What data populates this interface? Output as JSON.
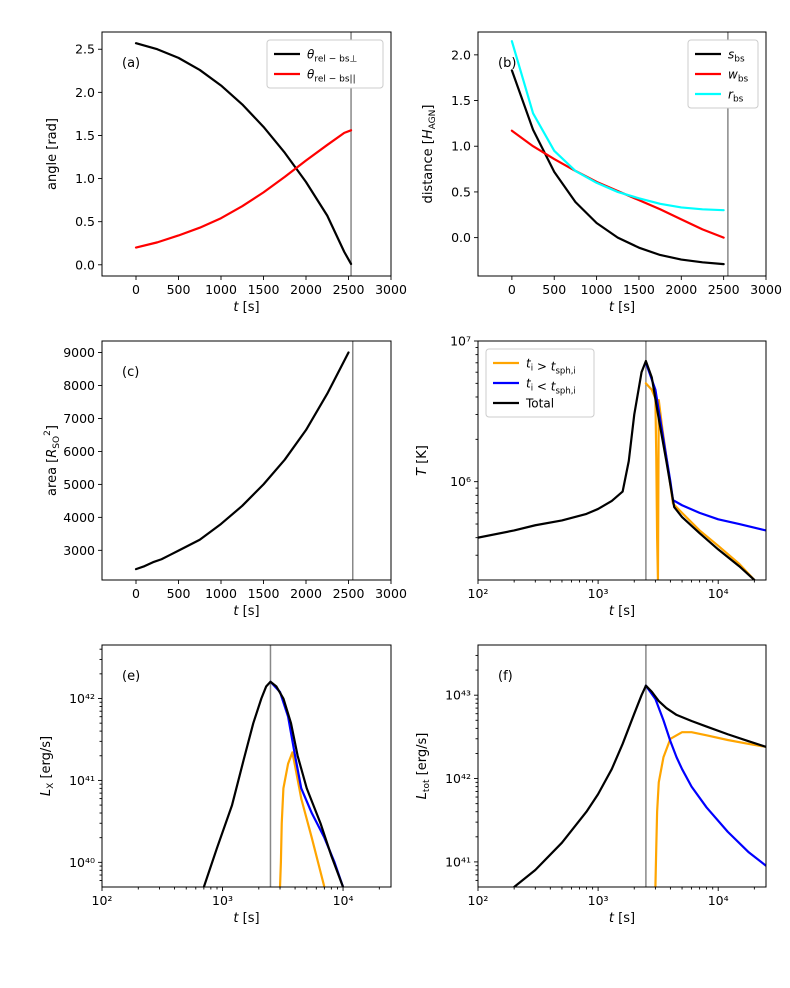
{
  "chart_data": [
    {
      "id": "a",
      "type": "line",
      "tag": "(a)",
      "xscale": "linear",
      "yscale": "linear",
      "xlim": [
        -400,
        3000
      ],
      "ylim": [
        -0.13,
        2.7
      ],
      "xticks": [
        0,
        500,
        1000,
        1500,
        2000,
        2500,
        3000
      ],
      "xtick_labels": [
        "0",
        "500",
        "1000",
        "1500",
        "2000",
        "2500",
        "3000"
      ],
      "yticks": [
        0.0,
        0.5,
        1.0,
        1.5,
        2.0,
        2.5
      ],
      "ytick_labels": [
        "0.0",
        "0.5",
        "1.0",
        "1.5",
        "2.0",
        "2.5"
      ],
      "xlabel": "t [s]",
      "ylabel": "angle [rad]",
      "vline": 2530,
      "legend": "top-right",
      "series": [
        {
          "name": "θrel−bs⊥",
          "legend_main": "θ",
          "legend_sub": "rel − bs⊥",
          "color": "#000000",
          "x": [
            0,
            250,
            500,
            750,
            1000,
            1250,
            1500,
            1750,
            2000,
            2250,
            2450,
            2530
          ],
          "y": [
            2.57,
            2.5,
            2.4,
            2.26,
            2.08,
            1.86,
            1.6,
            1.3,
            0.96,
            0.57,
            0.15,
            0.01
          ]
        },
        {
          "name": "θrel−bs||",
          "legend_main": "θ",
          "legend_sub": "rel − bs||",
          "color": "#ff0000",
          "x": [
            0,
            250,
            500,
            750,
            1000,
            1250,
            1500,
            1750,
            2000,
            2250,
            2450,
            2530
          ],
          "y": [
            0.2,
            0.26,
            0.34,
            0.43,
            0.54,
            0.68,
            0.84,
            1.02,
            1.21,
            1.39,
            1.53,
            1.56
          ]
        }
      ]
    },
    {
      "id": "b",
      "type": "line",
      "tag": "(b)",
      "xscale": "linear",
      "yscale": "linear",
      "xlim": [
        -400,
        3000
      ],
      "ylim": [
        -0.42,
        2.25
      ],
      "xticks": [
        0,
        500,
        1000,
        1500,
        2000,
        2500,
        3000
      ],
      "xtick_labels": [
        "0",
        "500",
        "1000",
        "1500",
        "2000",
        "2500",
        "3000"
      ],
      "yticks": [
        0.0,
        0.5,
        1.0,
        1.5,
        2.0
      ],
      "ytick_labels": [
        "0.0",
        "0.5",
        "1.0",
        "1.5",
        "2.0"
      ],
      "xlabel": "t [s]",
      "ylabel": "distance [H_AGN]",
      "vline": 2550,
      "legend": "top-right",
      "series": [
        {
          "name": "sbs",
          "legend_main": "s",
          "legend_sub": "bs",
          "color": "#000000",
          "x": [
            0,
            250,
            500,
            750,
            1000,
            1250,
            1500,
            1750,
            2000,
            2250,
            2500
          ],
          "y": [
            1.83,
            1.18,
            0.72,
            0.39,
            0.16,
            0.0,
            -0.11,
            -0.19,
            -0.24,
            -0.27,
            -0.29
          ]
        },
        {
          "name": "wbs",
          "legend_main": "w",
          "legend_sub": "bs",
          "color": "#ff0000",
          "x": [
            0,
            250,
            500,
            750,
            1000,
            1250,
            1500,
            1750,
            2000,
            2250,
            2500
          ],
          "y": [
            1.17,
            1.0,
            0.86,
            0.73,
            0.61,
            0.51,
            0.41,
            0.31,
            0.2,
            0.09,
            0.0
          ]
        },
        {
          "name": "rbs",
          "legend_main": "r",
          "legend_sub": "bs",
          "color": "#00ffff",
          "x": [
            0,
            250,
            500,
            750,
            1000,
            1250,
            1500,
            1750,
            2000,
            2250,
            2500
          ],
          "y": [
            2.15,
            1.36,
            0.95,
            0.73,
            0.6,
            0.5,
            0.43,
            0.37,
            0.33,
            0.31,
            0.3
          ]
        }
      ]
    },
    {
      "id": "c",
      "type": "line",
      "tag": "(c)",
      "xscale": "linear",
      "yscale": "linear",
      "xlim": [
        -400,
        3000
      ],
      "ylim": [
        2100,
        9350
      ],
      "xticks": [
        0,
        500,
        1000,
        1500,
        2000,
        2500,
        3000
      ],
      "xtick_labels": [
        "0",
        "500",
        "1000",
        "1500",
        "2000",
        "2500",
        "3000"
      ],
      "yticks": [
        3000,
        4000,
        5000,
        6000,
        7000,
        8000,
        9000
      ],
      "ytick_labels": [
        "3000",
        "4000",
        "5000",
        "6000",
        "7000",
        "8000",
        "9000"
      ],
      "xlabel": "t [s]",
      "ylabel": "area [R_SO^2]",
      "vline": 2550,
      "legend": "none",
      "series": [
        {
          "name": "area",
          "color": "#000000",
          "x": [
            0,
            100,
            200,
            300,
            400,
            500,
            750,
            1000,
            1250,
            1500,
            1750,
            2000,
            2250,
            2500
          ],
          "y": [
            2430,
            2520,
            2640,
            2730,
            2860,
            2990,
            3320,
            3800,
            4350,
            5000,
            5750,
            6650,
            7750,
            9000
          ]
        }
      ]
    },
    {
      "id": "d",
      "type": "line",
      "tag": "(d)",
      "xscale": "log",
      "yscale": "log",
      "xlim": [
        100,
        25000
      ],
      "ylim": [
        200000,
        10000000
      ],
      "xticks": [
        100,
        1000,
        10000
      ],
      "xtick_labels": [
        "10²",
        "10³",
        "10⁴"
      ],
      "yticks": [
        1000000,
        10000000
      ],
      "ytick_labels": [
        "10⁶",
        "10⁷"
      ],
      "xlabel": "t [s]",
      "ylabel": "T [K]",
      "vline": 2500,
      "legend": "top-left",
      "series": [
        {
          "name": "ti > tsph,i",
          "legend_main": "t",
          "legend_sub": "i > t_sph,i",
          "color": "#ffa500",
          "x": [
            2500,
            2800,
            3000,
            3050,
            3100,
            3150,
            3200,
            3400,
            3700,
            4200,
            5000,
            7000,
            10000,
            15000,
            20000
          ],
          "y": [
            5000000,
            4500000,
            3900000,
            1500000,
            400000,
            200000,
            3800000,
            2500000,
            1500000,
            700000,
            600000,
            450000,
            350000,
            260000,
            200000
          ]
        },
        {
          "name": "ti < tsph,i",
          "legend_main": "t",
          "legend_sub": "i < t_sph,i",
          "color": "#0000ff",
          "x": [
            2500,
            3000,
            3500,
            4000,
            4200,
            5000,
            7000,
            10000,
            15000,
            25000
          ],
          "y": [
            7000000,
            4500000,
            2000000,
            1000000,
            740000,
            680000,
            600000,
            540000,
            500000,
            450000
          ]
        },
        {
          "name": "Total",
          "legend_main": "Total",
          "legend_sub": "",
          "color": "#000000",
          "x": [
            100,
            200,
            300,
            500,
            800,
            1000,
            1300,
            1600,
            1800,
            2000,
            2300,
            2500,
            2800,
            3200,
            3700,
            4300,
            5000,
            7000,
            10000,
            15000,
            20000
          ],
          "y": [
            400000,
            450000,
            490000,
            530000,
            590000,
            640000,
            730000,
            850000,
            1400000,
            3000000,
            6000000,
            7200000,
            5500000,
            2800000,
            1400000,
            660000,
            560000,
            430000,
            330000,
            250000,
            200000
          ]
        }
      ]
    },
    {
      "id": "e",
      "type": "line",
      "tag": "(e)",
      "xscale": "log",
      "yscale": "log",
      "xlim": [
        100,
        25000
      ],
      "ylim": 5e+39,
      "ylim_max": 4.5e+42,
      "xticks": [
        100,
        1000,
        10000
      ],
      "xtick_labels": [
        "10²",
        "10³",
        "10⁴"
      ],
      "yticks": [
        1e+40,
        1e+41,
        1e+42
      ],
      "ytick_labels": [
        "10⁴⁰",
        "10⁴¹",
        "10⁴²"
      ],
      "xlabel": "t [s]",
      "ylabel": "L_X [erg/s]",
      "vline": 2500,
      "legend": "none",
      "series": [
        {
          "name": "ti > tsph,i",
          "color": "#ffa500",
          "x": [
            3000,
            3050,
            3100,
            3200,
            3500,
            3800,
            4000,
            4500,
            5500,
            7000
          ],
          "y": [
            5e+39,
            1e+40,
            3e+40,
            8e+40,
            1.6e+41,
            2.2e+41,
            1.5e+41,
            6e+40,
            2e+40,
            5e+39
          ]
        },
        {
          "name": "ti < tsph,i",
          "color": "#0000ff",
          "x": [
            2500,
            3000,
            3500,
            4000,
            4500,
            5500,
            7000,
            8500,
            10000
          ],
          "y": [
            1.6e+42,
            1.2e+42,
            6e+41,
            2e+41,
            8e+40,
            4e+40,
            2e+40,
            1e+40,
            5e+39
          ]
        },
        {
          "name": "Total",
          "color": "#000000",
          "x": [
            700,
            900,
            1200,
            1500,
            1800,
            2100,
            2300,
            2500,
            2800,
            3200,
            3700,
            4200,
            5000,
            6500,
            8000,
            10000
          ],
          "y": [
            5e+39,
            1.5e+40,
            5e+40,
            1.8e+41,
            5e+41,
            1e+42,
            1.4e+42,
            1.6e+42,
            1.4e+42,
            1e+42,
            5e+41,
            2e+41,
            8e+40,
            3e+40,
            1.2e+40,
            5e+39
          ]
        }
      ]
    },
    {
      "id": "f",
      "type": "line",
      "tag": "(f)",
      "xscale": "log",
      "yscale": "log",
      "xlim": [
        100,
        25000
      ],
      "ylim": 5e+40,
      "ylim_max": 4e+43,
      "xticks": [
        100,
        1000,
        10000
      ],
      "xtick_labels": [
        "10²",
        "10³",
        "10⁴"
      ],
      "yticks": [
        1e+41,
        1e+42,
        1e+43
      ],
      "ytick_labels": [
        "10⁴¹",
        "10⁴²",
        "10⁴³"
      ],
      "xlabel": "t [s]",
      "ylabel": "L_tot [erg/s]",
      "vline": 2500,
      "legend": "none",
      "series": [
        {
          "name": "ti > tsph,i",
          "color": "#ffa500",
          "x": [
            3000,
            3050,
            3100,
            3200,
            3500,
            4000,
            5000,
            6000,
            8000,
            12000,
            18000,
            25000
          ],
          "y": [
            5e+40,
            1.5e+41,
            4e+41,
            9e+41,
            1.8e+42,
            3e+42,
            3.6e+42,
            3.6e+42,
            3.3e+42,
            2.9e+42,
            2.6e+42,
            2.4e+42
          ]
        },
        {
          "name": "ti < tsph,i",
          "color": "#0000ff",
          "x": [
            2500,
            3000,
            3500,
            4000,
            4500,
            5000,
            6000,
            8000,
            12000,
            18000,
            25000
          ],
          "y": [
            1.3e+43,
            9e+42,
            5e+42,
            2.8e+42,
            1.8e+42,
            1.3e+42,
            8e+41,
            4.5e+41,
            2.3e+41,
            1.3e+41,
            9e+40
          ]
        },
        {
          "name": "Total",
          "color": "#000000",
          "x": [
            200,
            300,
            500,
            800,
            1000,
            1300,
            1600,
            2000,
            2300,
            2500,
            2800,
            3200,
            3700,
            4500,
            6000,
            8000,
            12000,
            18000,
            25000
          ],
          "y": [
            5e+40,
            8e+40,
            1.7e+41,
            4e+41,
            6.5e+41,
            1.3e+42,
            2.6e+42,
            6e+42,
            1e+43,
            1.3e+43,
            1.1e+43,
            8.5e+42,
            7e+42,
            5.8e+42,
            4.9e+42,
            4.2e+42,
            3.4e+42,
            2.8e+42,
            2.4e+42
          ]
        }
      ]
    }
  ]
}
